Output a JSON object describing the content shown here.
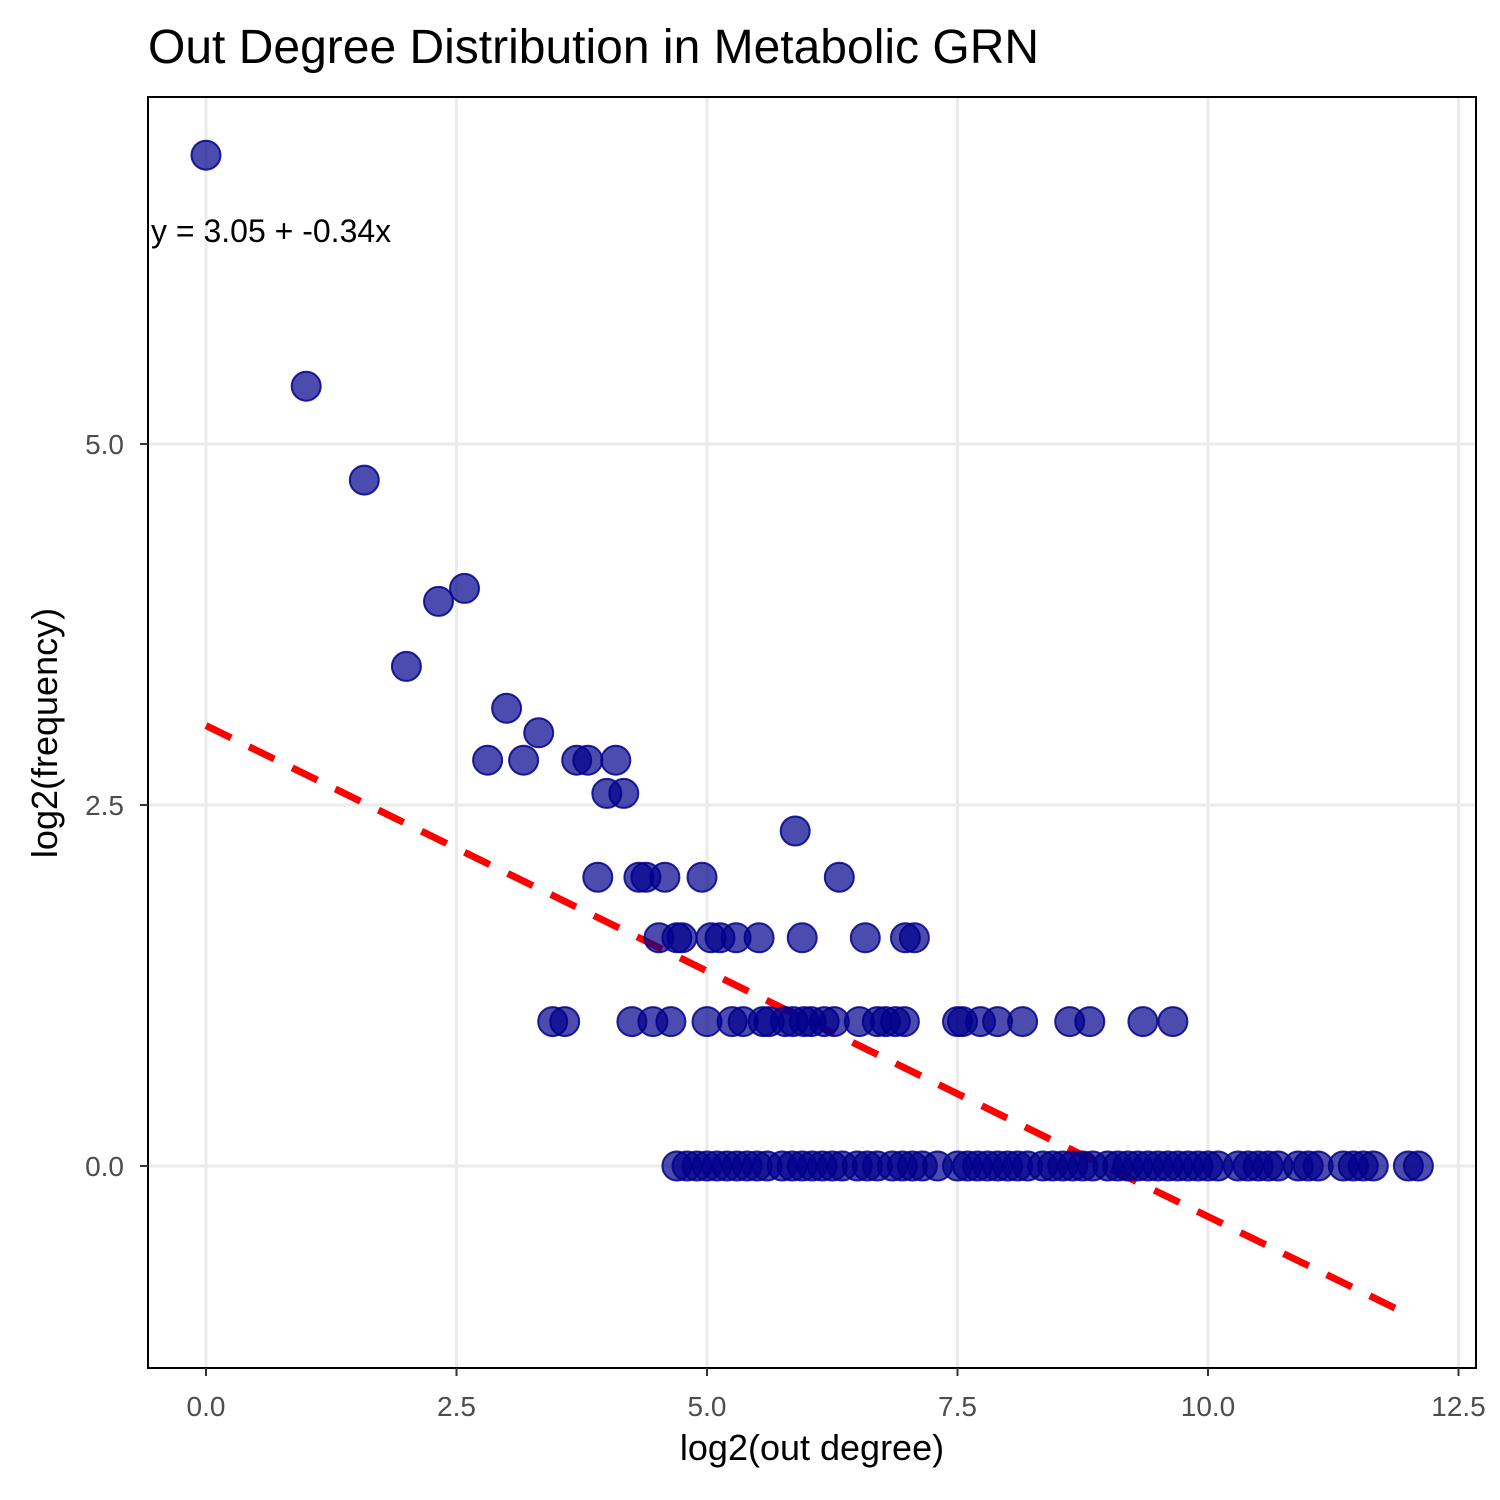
{
  "chart_data": {
    "type": "scatter",
    "title": "Out Degree Distribution in Metabolic GRN",
    "xlabel": "log2(out degree)",
    "ylabel": "log2(frequency)",
    "xlim": [
      -0.6,
      12.55
    ],
    "ylim": [
      -1.4,
      7.5
    ],
    "x_ticks": [
      0.0,
      2.5,
      5.0,
      7.5,
      10.0,
      12.5
    ],
    "x_tick_labels": [
      "0.0",
      "2.5",
      "5.0",
      "7.5",
      "10.0",
      "12.5"
    ],
    "y_ticks": [
      0.0,
      2.5,
      5.0
    ],
    "y_tick_labels": [
      "0.0",
      "2.5",
      "5.0"
    ],
    "grid": true,
    "point_color": "#00008b",
    "point_opacity": 0.7,
    "fit_line_color": "#ff0000",
    "fit": {
      "intercept": 3.05,
      "slope": -0.34,
      "x_range": [
        0,
        11.9
      ]
    },
    "annotation": "y = 3.05 + -0.34x",
    "points": [
      [
        0,
        7.0
      ],
      [
        1,
        5.4
      ],
      [
        1.58,
        4.75
      ],
      [
        2.0,
        3.46
      ],
      [
        2.32,
        3.91
      ],
      [
        2.58,
        4.0
      ],
      [
        2.81,
        2.81
      ],
      [
        3.0,
        3.17
      ],
      [
        3.17,
        2.81
      ],
      [
        3.32,
        3.0
      ],
      [
        3.46,
        1.0
      ],
      [
        3.58,
        1.0
      ],
      [
        3.7,
        2.81
      ],
      [
        3.81,
        2.81
      ],
      [
        3.91,
        2.0
      ],
      [
        4.0,
        2.58
      ],
      [
        4.09,
        2.81
      ],
      [
        4.17,
        2.58
      ],
      [
        4.25,
        1.0
      ],
      [
        4.32,
        2.0
      ],
      [
        4.39,
        2.0
      ],
      [
        4.46,
        1.0
      ],
      [
        4.52,
        1.58
      ],
      [
        4.58,
        2.0
      ],
      [
        4.64,
        1.0
      ],
      [
        4.7,
        1.58
      ],
      [
        4.75,
        1.58
      ],
      [
        4.95,
        2.0
      ],
      [
        5.0,
        1.0
      ],
      [
        5.04,
        1.58
      ],
      [
        5.13,
        1.58
      ],
      [
        5.25,
        1.0
      ],
      [
        5.29,
        1.58
      ],
      [
        5.36,
        1.0
      ],
      [
        5.52,
        1.58
      ],
      [
        5.56,
        1.0
      ],
      [
        5.62,
        1.0
      ],
      [
        5.78,
        1.0
      ],
      [
        5.86,
        1.0
      ],
      [
        5.88,
        2.32
      ],
      [
        5.95,
        1.58
      ],
      [
        5.97,
        1.0
      ],
      [
        6.04,
        1.0
      ],
      [
        6.17,
        1.0
      ],
      [
        6.27,
        1.0
      ],
      [
        6.32,
        2.0
      ],
      [
        6.52,
        1.0
      ],
      [
        6.58,
        1.58
      ],
      [
        6.7,
        1.0
      ],
      [
        6.78,
        1.0
      ],
      [
        6.88,
        1.0
      ],
      [
        6.97,
        1.0
      ],
      [
        6.98,
        1.58
      ],
      [
        7.07,
        1.58
      ],
      [
        7.5,
        1.0
      ],
      [
        7.55,
        1.0
      ],
      [
        7.73,
        1.0
      ],
      [
        7.9,
        1.0
      ],
      [
        8.15,
        1.0
      ],
      [
        8.62,
        1.0
      ],
      [
        8.82,
        1.0
      ],
      [
        9.35,
        1.0
      ],
      [
        9.65,
        1.0
      ],
      [
        4.7,
        0
      ],
      [
        4.8,
        0
      ],
      [
        4.9,
        0
      ],
      [
        5.0,
        0
      ],
      [
        5.1,
        0
      ],
      [
        5.2,
        0
      ],
      [
        5.3,
        0
      ],
      [
        5.4,
        0
      ],
      [
        5.5,
        0
      ],
      [
        5.6,
        0
      ],
      [
        5.75,
        0
      ],
      [
        5.85,
        0
      ],
      [
        5.95,
        0
      ],
      [
        6.05,
        0
      ],
      [
        6.15,
        0
      ],
      [
        6.25,
        0
      ],
      [
        6.35,
        0
      ],
      [
        6.5,
        0
      ],
      [
        6.6,
        0
      ],
      [
        6.7,
        0
      ],
      [
        6.85,
        0
      ],
      [
        6.95,
        0
      ],
      [
        7.05,
        0
      ],
      [
        7.15,
        0
      ],
      [
        7.3,
        0
      ],
      [
        7.5,
        0
      ],
      [
        7.6,
        0
      ],
      [
        7.7,
        0
      ],
      [
        7.8,
        0
      ],
      [
        7.9,
        0
      ],
      [
        8.0,
        0
      ],
      [
        8.1,
        0
      ],
      [
        8.2,
        0
      ],
      [
        8.35,
        0
      ],
      [
        8.45,
        0
      ],
      [
        8.55,
        0
      ],
      [
        8.65,
        0
      ],
      [
        8.75,
        0
      ],
      [
        8.85,
        0
      ],
      [
        9.0,
        0
      ],
      [
        9.1,
        0
      ],
      [
        9.2,
        0
      ],
      [
        9.3,
        0
      ],
      [
        9.4,
        0
      ],
      [
        9.5,
        0
      ],
      [
        9.6,
        0
      ],
      [
        9.7,
        0
      ],
      [
        9.8,
        0
      ],
      [
        9.9,
        0
      ],
      [
        10.0,
        0
      ],
      [
        10.1,
        0
      ],
      [
        10.3,
        0
      ],
      [
        10.4,
        0
      ],
      [
        10.5,
        0
      ],
      [
        10.6,
        0
      ],
      [
        10.7,
        0
      ],
      [
        10.9,
        0
      ],
      [
        11.0,
        0
      ],
      [
        11.1,
        0
      ],
      [
        11.35,
        0
      ],
      [
        11.45,
        0
      ],
      [
        11.55,
        0
      ],
      [
        11.65,
        0
      ],
      [
        12.0,
        0
      ],
      [
        12.1,
        0
      ]
    ]
  }
}
